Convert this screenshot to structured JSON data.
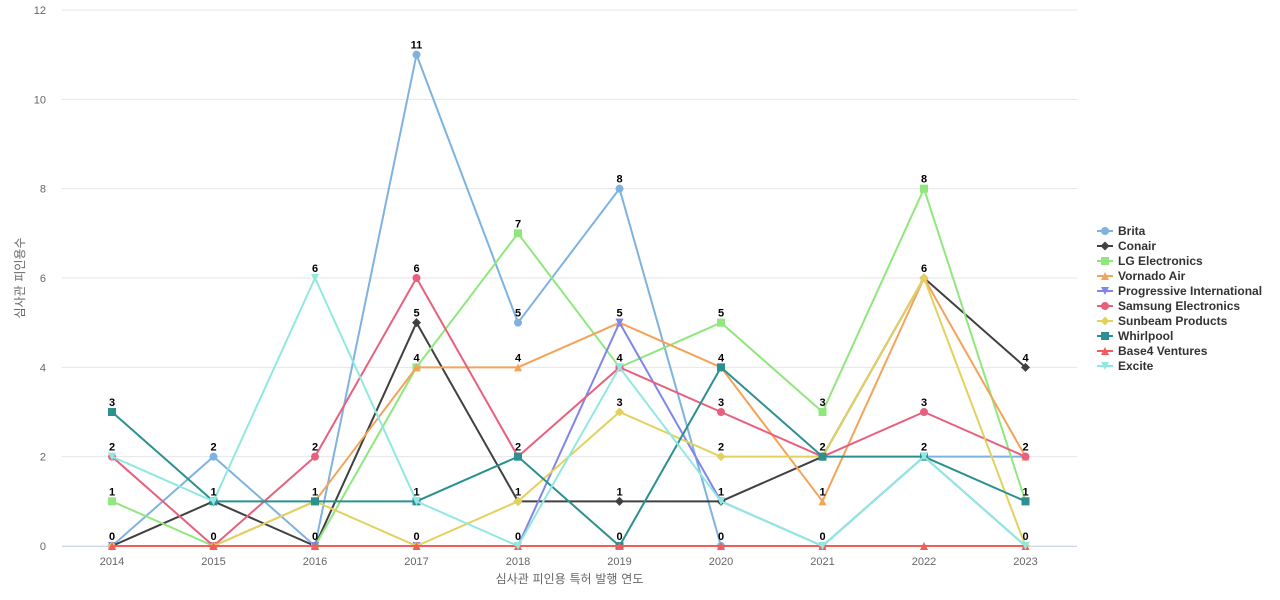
{
  "chart_data": {
    "type": "line",
    "xlabel": "심사관 피인용 특허 발행 연도",
    "ylabel": "심사관 피인용수",
    "ylim": [
      0,
      12
    ],
    "yticks": [
      "0",
      "2",
      "4",
      "6",
      "8",
      "10",
      "12"
    ],
    "categories": [
      "2014",
      "2015",
      "2016",
      "2017",
      "2018",
      "2019",
      "2020",
      "2021",
      "2022",
      "2023"
    ],
    "grid": true,
    "legend_position": "right",
    "series": [
      {
        "name": "Brita",
        "color": "#7eb2e0",
        "marker": "circle",
        "values": [
          0,
          2,
          0,
          11,
          5,
          8,
          0,
          0,
          2,
          2
        ]
      },
      {
        "name": "Conair",
        "color": "#404040",
        "marker": "diamond",
        "values": [
          0,
          1,
          0,
          5,
          1,
          1,
          1,
          2,
          6,
          4
        ]
      },
      {
        "name": "LG Electronics",
        "color": "#90e77e",
        "marker": "square",
        "values": [
          1,
          0,
          0,
          4,
          7,
          4,
          5,
          3,
          8,
          1
        ]
      },
      {
        "name": "Vornado Air",
        "color": "#f4a35a",
        "marker": "triangle",
        "values": [
          0,
          0,
          1,
          4,
          4,
          5,
          4,
          1,
          6,
          2
        ]
      },
      {
        "name": "Progressive International",
        "color": "#8085e8",
        "marker": "triangle-down",
        "values": [
          0,
          0,
          0,
          0,
          0,
          5,
          1,
          0,
          2,
          0
        ]
      },
      {
        "name": "Samsung Electronics",
        "color": "#e8607e",
        "marker": "circle",
        "values": [
          2,
          0,
          2,
          6,
          2,
          4,
          3,
          2,
          3,
          2
        ]
      },
      {
        "name": "Sunbeam Products",
        "color": "#e3d15e",
        "marker": "diamond",
        "values": [
          0,
          0,
          1,
          0,
          1,
          3,
          2,
          2,
          6,
          0
        ]
      },
      {
        "name": "Whirlpool",
        "color": "#2b908f",
        "marker": "square",
        "values": [
          3,
          1,
          1,
          1,
          2,
          0,
          4,
          2,
          2,
          1
        ]
      },
      {
        "name": "Base4 Ventures",
        "color": "#f45b5b",
        "marker": "triangle",
        "values": [
          0,
          0,
          0,
          0,
          0,
          0,
          0,
          0,
          0,
          0
        ]
      },
      {
        "name": "Excite",
        "color": "#91e8e1",
        "marker": "triangle-down",
        "values": [
          2,
          1,
          6,
          1,
          0,
          4,
          1,
          0,
          2,
          0
        ]
      }
    ],
    "data_labels": [
      {
        "x": "2014",
        "values": [
          "0",
          "1",
          "3",
          "2"
        ]
      },
      {
        "x": "2015",
        "values": [
          "0",
          "1",
          "2"
        ]
      },
      {
        "x": "2016",
        "values": [
          "0",
          "1",
          "2",
          "6"
        ]
      },
      {
        "x": "2017",
        "values": [
          "0",
          "1",
          "4",
          "5",
          "6",
          "11"
        ]
      },
      {
        "x": "2018",
        "values": [
          "0",
          "1",
          "2",
          "4",
          "5",
          "7"
        ]
      },
      {
        "x": "2019",
        "values": [
          "0",
          "1",
          "3",
          "4",
          "5",
          "8"
        ]
      },
      {
        "x": "2020",
        "values": [
          "0",
          "1",
          "2",
          "3",
          "4",
          "5"
        ]
      },
      {
        "x": "2021",
        "values": [
          "0",
          "1",
          "2",
          "3"
        ]
      },
      {
        "x": "2022",
        "values": [
          "2",
          "3",
          "6",
          "8"
        ]
      },
      {
        "x": "2023",
        "values": [
          "0",
          "1",
          "2",
          "4"
        ]
      }
    ]
  }
}
